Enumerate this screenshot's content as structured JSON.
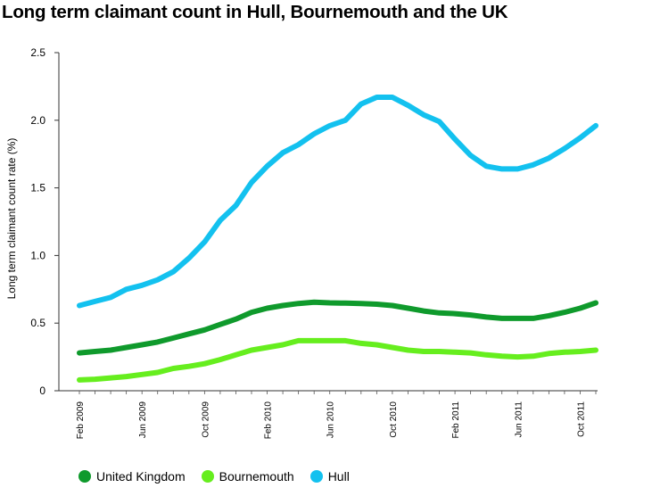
{
  "title": "Long term claimant count in Hull, Bournemouth and the UK",
  "chart_data": {
    "type": "line",
    "title": "Long term claimant count in Hull, Bournemouth and the UK",
    "xlabel": "",
    "ylabel": "Long term claimant count rate (%)",
    "ylim": [
      0,
      2.5
    ],
    "yticks": [
      "0",
      "0.5",
      "1.0",
      "1.5",
      "2.0",
      "2.5"
    ],
    "ytick_values": [
      0,
      0.5,
      1.0,
      1.5,
      2.0,
      2.5
    ],
    "xtick_labels": [
      "Feb 2009",
      "Jun 2009",
      "Oct 2009",
      "Feb 2010",
      "Jun 2010",
      "Oct 2010",
      "Feb 2011",
      "Jun 2011",
      "Oct 2011"
    ],
    "xtick_index": [
      0,
      4,
      8,
      12,
      16,
      20,
      24,
      28,
      32
    ],
    "x": [
      "Feb 2009",
      "Mar 2009",
      "Apr 2009",
      "May 2009",
      "Jun 2009",
      "Jul 2009",
      "Aug 2009",
      "Sep 2009",
      "Oct 2009",
      "Nov 2009",
      "Dec 2009",
      "Jan 2010",
      "Feb 2010",
      "Mar 2010",
      "Apr 2010",
      "May 2010",
      "Jun 2010",
      "Jul 2010",
      "Aug 2010",
      "Sep 2010",
      "Oct 2010",
      "Nov 2010",
      "Dec 2010",
      "Jan 2011",
      "Feb 2011",
      "Mar 2011",
      "Apr 2011",
      "May 2011",
      "Jun 2011",
      "Jul 2011",
      "Aug 2011",
      "Sep 2011",
      "Oct 2011",
      "Nov 2011"
    ],
    "grid": false,
    "legend_position": "bottom",
    "series": [
      {
        "name": "United Kingdom",
        "color": "#0f9a2c",
        "values": [
          0.28,
          0.29,
          0.3,
          0.32,
          0.34,
          0.36,
          0.39,
          0.42,
          0.45,
          0.49,
          0.53,
          0.58,
          0.61,
          0.63,
          0.645,
          0.655,
          0.65,
          0.648,
          0.645,
          0.64,
          0.63,
          0.61,
          0.59,
          0.575,
          0.57,
          0.56,
          0.545,
          0.535,
          0.535,
          0.535,
          0.555,
          0.58,
          0.61,
          0.65
        ]
      },
      {
        "name": "Bournemouth",
        "color": "#66ee1e",
        "values": [
          0.08,
          0.085,
          0.095,
          0.105,
          0.12,
          0.135,
          0.165,
          0.18,
          0.2,
          0.23,
          0.265,
          0.3,
          0.32,
          0.34,
          0.37,
          0.37,
          0.37,
          0.37,
          0.35,
          0.34,
          0.32,
          0.3,
          0.29,
          0.29,
          0.285,
          0.28,
          0.265,
          0.255,
          0.25,
          0.255,
          0.275,
          0.285,
          0.29,
          0.3
        ]
      },
      {
        "name": "Hull",
        "color": "#13c1ef",
        "values": [
          0.63,
          0.66,
          0.69,
          0.75,
          0.78,
          0.82,
          0.88,
          0.98,
          1.1,
          1.26,
          1.37,
          1.54,
          1.66,
          1.76,
          1.82,
          1.9,
          1.96,
          2.0,
          2.12,
          2.17,
          2.17,
          2.11,
          2.04,
          1.99,
          1.86,
          1.74,
          1.66,
          1.64,
          1.64,
          1.67,
          1.72,
          1.79,
          1.87,
          1.96
        ]
      }
    ]
  }
}
